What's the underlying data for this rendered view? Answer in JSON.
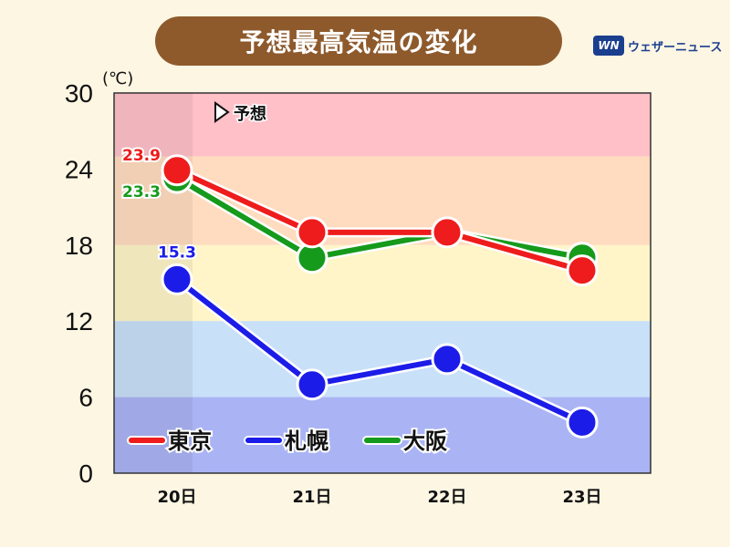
{
  "title": "予想最高気温の変化",
  "logo": {
    "mark": "WN",
    "text": "ウェザーニュース"
  },
  "colors": {
    "title_bg": "#8e5a2c",
    "tokyo": "#ee1c1c",
    "sapporo": "#1c1ce8",
    "osaka": "#169a1c",
    "band_pink": "#ffc0c8",
    "band_orange": "#ffdcc0",
    "band_yellow": "#fff5c8",
    "band_lightblue": "#c8e0f8",
    "band_blue": "#aab4f4"
  },
  "chart_data": {
    "type": "line",
    "unit_label": "(℃)",
    "forecast_label": "予想",
    "categories": [
      "20日",
      "21日",
      "22日",
      "23日"
    ],
    "y_ticks": [
      "0",
      "6",
      "12",
      "18",
      "24",
      "30"
    ],
    "ylim": [
      0,
      30
    ],
    "series": [
      {
        "name": "東京",
        "values": [
          23.9,
          19,
          19,
          16
        ],
        "color": "#ee1c1c",
        "label": "23.9"
      },
      {
        "name": "札幌",
        "values": [
          15.3,
          7,
          9,
          4
        ],
        "color": "#1c1ce8",
        "label": "15.3"
      },
      {
        "name": "大阪",
        "values": [
          23.3,
          17,
          19,
          17
        ],
        "color": "#169a1c",
        "label": "23.3"
      }
    ],
    "legend_placement": "bottom-left"
  }
}
